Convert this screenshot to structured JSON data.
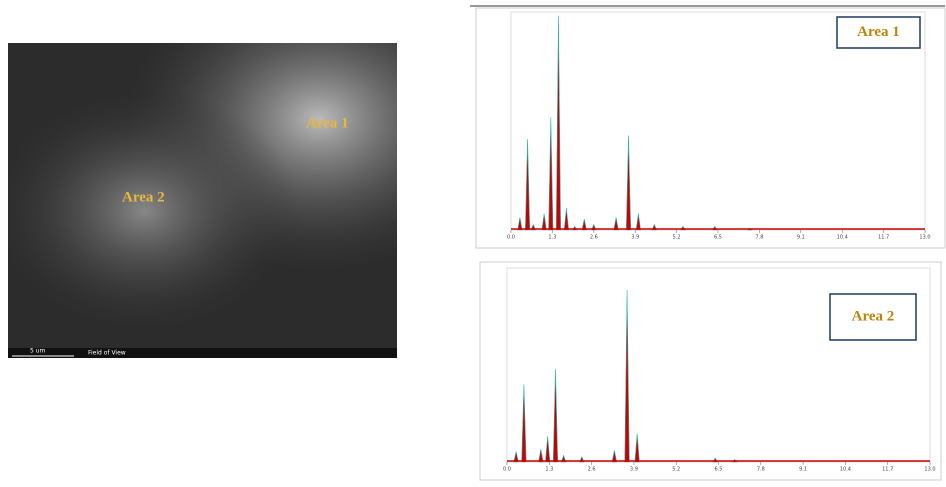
{
  "sem_image": {
    "labels": [
      "Area 1",
      "Area 2"
    ],
    "scale_bar": "5 um",
    "footer": "Field of View"
  },
  "chart_data": [
    {
      "type": "area",
      "title": "Area 1",
      "color": "#cc0000",
      "x": [
        0.28,
        0.52,
        0.7,
        1.04,
        1.25,
        1.49,
        1.74,
        2.0,
        2.3,
        2.6,
        3.3,
        3.69,
        4.0,
        4.5,
        5.4,
        6.4,
        7.5
      ],
      "values": [
        700,
        5000,
        300,
        900,
        6200,
        11800,
        1200,
        200,
        600,
        300,
        700,
        5200,
        900,
        300,
        200,
        200,
        100
      ],
      "xlim": [
        0,
        13
      ],
      "ylim": [
        0,
        12000
      ],
      "xticks": [
        {
          "value": 0,
          "label": "0.0"
        },
        1.3,
        2.6,
        3.9,
        5.2,
        6.5,
        7.8,
        9.1,
        10.4,
        11.7,
        {
          "value": 13,
          "label": "13.0"
        }
      ]
    },
    {
      "type": "area",
      "title": "Area 2",
      "color": "#cc0000",
      "x": [
        0.28,
        0.52,
        1.04,
        1.25,
        1.49,
        1.74,
        2.3,
        3.3,
        3.69,
        4.0,
        6.4,
        7.0
      ],
      "values": [
        800,
        6000,
        1000,
        2000,
        7200,
        500,
        400,
        900,
        13300,
        2200,
        300,
        200
      ],
      "xlim": [
        0,
        13
      ],
      "ylim": [
        0,
        15000
      ],
      "xticks": [
        {
          "value": 0,
          "label": "0.0"
        },
        1.3,
        2.6,
        3.9,
        5.2,
        6.5,
        7.8,
        9.1,
        10.4,
        11.7,
        {
          "value": 13,
          "label": "13.0"
        }
      ]
    }
  ]
}
